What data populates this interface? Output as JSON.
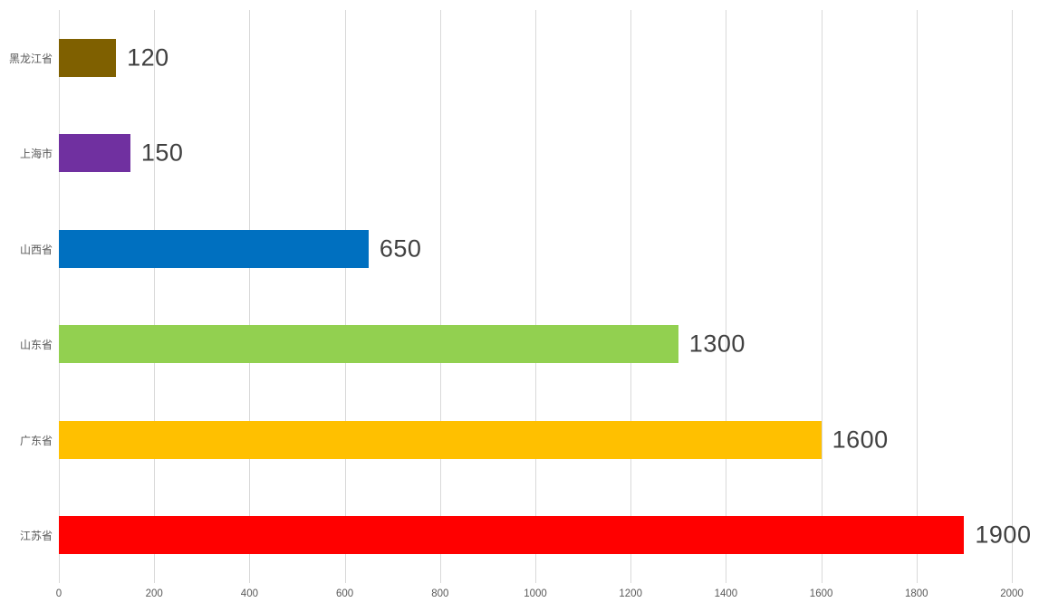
{
  "chart_data": {
    "type": "bar",
    "orientation": "horizontal",
    "title": "",
    "xlabel": "",
    "ylabel": "",
    "categories": [
      "黑龙江省",
      "上海市",
      "山西省",
      "山东省",
      "广东省",
      "江苏省"
    ],
    "values": [
      120,
      150,
      650,
      1300,
      1600,
      1900
    ],
    "data_labels": [
      "120",
      "150",
      "650",
      "1300",
      "1600",
      "1900"
    ],
    "bar_colors": [
      "#7F6000",
      "#7030A0",
      "#0070C0",
      "#92D050",
      "#FFC000",
      "#FF0000"
    ],
    "xlim": [
      0,
      2000
    ],
    "x_ticks": [
      "0",
      "200",
      "400",
      "600",
      "800",
      "1000",
      "1200",
      "1400",
      "1600",
      "1800",
      "2000"
    ],
    "grid": true,
    "legend": "none",
    "colors": {
      "background": "#FFFFFF",
      "gridline": "#D9D9D9",
      "category_label": "#595959",
      "tick_label": "#595959",
      "value_label": "#404040"
    }
  }
}
